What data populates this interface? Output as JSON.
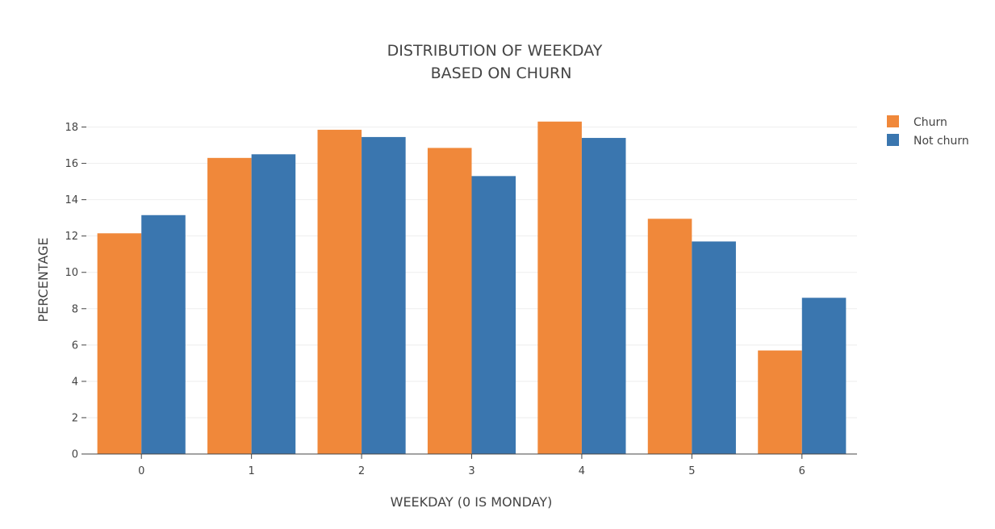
{
  "chart_data": {
    "type": "bar",
    "title_lines": [
      "DISTRIBUTION OF WEEKDAY",
      "BASED ON CHURN"
    ],
    "xlabel": "WEEKDAY (0 IS MONDAY)",
    "ylabel": "PERCENTAGE",
    "categories": [
      "0",
      "1",
      "2",
      "3",
      "4",
      "5",
      "6"
    ],
    "ylim": [
      0,
      19
    ],
    "yticks": [
      0,
      2,
      4,
      6,
      8,
      10,
      12,
      14,
      16,
      18
    ],
    "grid": true,
    "legend_position": "top-right",
    "series": [
      {
        "name": "Churn",
        "color": "#F0883A",
        "values": [
          12.15,
          16.3,
          17.85,
          16.85,
          18.3,
          12.95,
          5.7
        ]
      },
      {
        "name": "Not churn",
        "color": "#3A76AF",
        "values": [
          13.15,
          16.5,
          17.45,
          15.3,
          17.4,
          11.7,
          8.6
        ]
      }
    ]
  }
}
